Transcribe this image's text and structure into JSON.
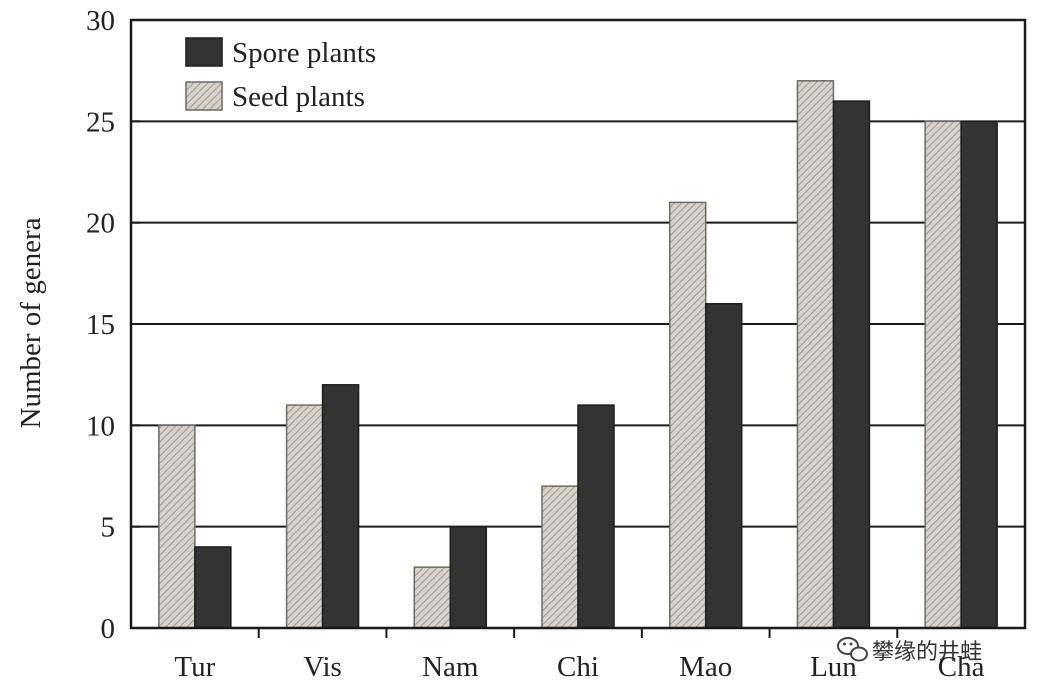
{
  "chart_data": {
    "type": "bar",
    "categories": [
      "Tur",
      "Vis",
      "Nam",
      "Chi",
      "Mao",
      "Lun",
      "Cha"
    ],
    "series": [
      {
        "name": "Seed plants",
        "values": [
          10,
          11,
          3,
          7,
          21,
          27,
          25
        ],
        "color": "#c9c6bf",
        "pattern": "diagonal-hatch"
      },
      {
        "name": "Spore plants",
        "values": [
          4,
          12,
          5,
          11,
          16,
          26,
          25
        ],
        "color": "#333333",
        "pattern": "solid"
      }
    ],
    "legend_order": [
      "Spore plants",
      "Seed plants"
    ],
    "legend_position": "top-left",
    "ylabel": "Number of genera",
    "xlabel": "",
    "ylim": [
      0,
      30
    ],
    "yticks": [
      0,
      5,
      10,
      15,
      20,
      25,
      30
    ],
    "grid": "horizontal"
  },
  "watermark": {
    "text": "攀缘的井蛙",
    "icon": "wechat-icon"
  }
}
